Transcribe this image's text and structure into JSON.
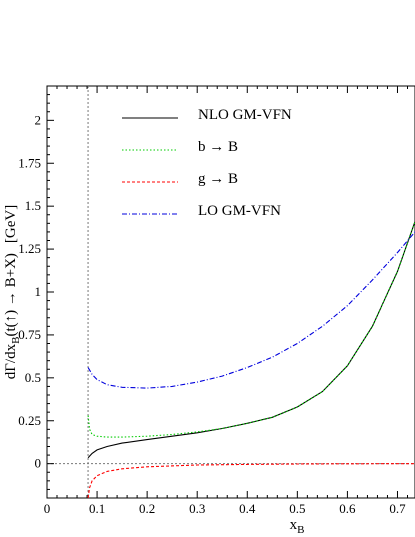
{
  "chart_data": {
    "type": "line",
    "xlabel_main": "x",
    "xlabel_sub": "B",
    "ylabel": {
      "part1": "dΓ/dx",
      "sub": "B",
      "part2": "(t(",
      "sym": "↑",
      "part3": ") → B+X)",
      "unit": "[GeV]"
    },
    "xlim": [
      0,
      0.735
    ],
    "ylim": [
      -0.2,
      2.2
    ],
    "x_ticks": [
      0,
      0.1,
      0.2,
      0.3,
      0.4,
      0.5,
      0.6,
      0.7
    ],
    "x_tick_labels": [
      "0",
      "0.1",
      "0.2",
      "0.3",
      "0.4",
      "0.5",
      "0.6",
      "0.7"
    ],
    "y_ticks": [
      0,
      0.25,
      0.5,
      0.75,
      1,
      1.25,
      1.5,
      1.75,
      2
    ],
    "y_tick_labels": [
      "0",
      "0.25",
      "0.5",
      "0.75",
      "1",
      "1.25",
      "1.5",
      "1.75",
      "2"
    ],
    "reference_lines": {
      "x": 0.082,
      "y": 0
    },
    "grid": false,
    "legend_position": "top",
    "series": [
      {
        "name": "NLO  GM-VFN",
        "color": "#000000",
        "dash": "solid",
        "x": [
          0.082,
          0.09,
          0.1,
          0.12,
          0.15,
          0.2,
          0.25,
          0.3,
          0.35,
          0.4,
          0.45,
          0.5,
          0.55,
          0.6,
          0.65,
          0.7,
          0.735
        ],
        "y": [
          0.035,
          0.06,
          0.08,
          0.1,
          0.12,
          0.14,
          0.16,
          0.18,
          0.205,
          0.235,
          0.27,
          0.33,
          0.42,
          0.57,
          0.8,
          1.12,
          1.41
        ]
      },
      {
        "name": "b → B",
        "color": "#00cc00",
        "dash": "dotted",
        "x": [
          0.082,
          0.085,
          0.09,
          0.1,
          0.12,
          0.15,
          0.2,
          0.25,
          0.3,
          0.35,
          0.4,
          0.45,
          0.5,
          0.55,
          0.6,
          0.65,
          0.7,
          0.735
        ],
        "y": [
          0.28,
          0.2,
          0.17,
          0.16,
          0.155,
          0.155,
          0.16,
          0.17,
          0.185,
          0.205,
          0.235,
          0.27,
          0.33,
          0.42,
          0.57,
          0.8,
          1.12,
          1.41
        ]
      },
      {
        "name": "g → B",
        "color": "#ff0000",
        "dash": "dashed",
        "x": [
          0.082,
          0.085,
          0.09,
          0.1,
          0.12,
          0.15,
          0.2,
          0.3,
          0.4,
          0.5,
          0.6,
          0.7,
          0.735
        ],
        "y": [
          -0.2,
          -0.14,
          -0.1,
          -0.07,
          -0.045,
          -0.03,
          -0.018,
          -0.008,
          -0.004,
          -0.002,
          -0.001,
          0,
          0
        ]
      },
      {
        "name": "LO GM-VFN",
        "color": "#0000dd",
        "dash": "dashdot",
        "x": [
          0.082,
          0.09,
          0.1,
          0.12,
          0.15,
          0.2,
          0.25,
          0.3,
          0.35,
          0.4,
          0.45,
          0.5,
          0.55,
          0.6,
          0.65,
          0.7,
          0.735
        ],
        "y": [
          0.56,
          0.52,
          0.49,
          0.46,
          0.445,
          0.44,
          0.45,
          0.475,
          0.51,
          0.56,
          0.62,
          0.7,
          0.8,
          0.92,
          1.07,
          1.23,
          1.35
        ]
      }
    ]
  }
}
